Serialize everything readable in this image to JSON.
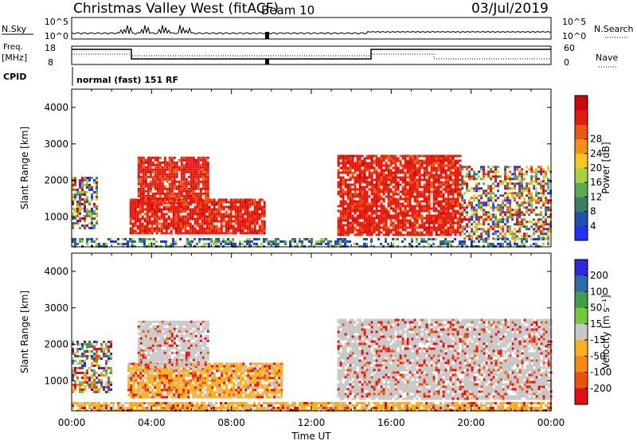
{
  "header": {
    "title": "Christmas Valley West (fitACF)",
    "beam": "Beam 10",
    "date": "03/Jul/2019"
  },
  "status_panels": {
    "nsky_label": "N.Sky",
    "nsearch_label": "N.Search",
    "freq_label_1": "Freq.",
    "freq_label_2": "[MHz]",
    "nave_label": "Nave",
    "cpid_label": "CPID",
    "cpid_value": "normal (fast) 151 RF",
    "noise_left_ticks": [
      "10^5",
      "10^0"
    ],
    "noise_right_ticks": [
      "10^5",
      "10^0"
    ],
    "freq_left_ticks": [
      "18",
      "8"
    ],
    "freq_right_ticks": [
      "60",
      "0"
    ]
  },
  "chart_data": [
    {
      "type": "heatmap",
      "name": "power",
      "ylabel": "Slant Range [km]",
      "ylim": [
        180,
        4500
      ],
      "yticks": [
        1000,
        2000,
        3000,
        4000
      ],
      "xlim_hours": [
        0,
        24
      ],
      "colorbar": {
        "label": "Power [dB]",
        "ticks": [
          "4",
          "8",
          "12",
          "16",
          "20",
          "24",
          "28"
        ],
        "colors": [
          "#2030ff",
          "#2050a8",
          "#3c7e64",
          "#5ea854",
          "#a8d040",
          "#f8c820",
          "#f49018",
          "#ec5812",
          "#e41a10",
          "#c80808"
        ]
      },
      "echo_regions": [
        {
          "t0": 0.0,
          "t1": 1.2,
          "r0": 700,
          "r1": 2100,
          "level": "mixed"
        },
        {
          "t0": 2.9,
          "t1": 9.6,
          "r0": 550,
          "r1": 1500,
          "level": "strong"
        },
        {
          "t0": 3.3,
          "t1": 6.8,
          "r0": 1400,
          "r1": 2650,
          "level": "strong"
        },
        {
          "t0": 13.3,
          "t1": 19.5,
          "r0": 500,
          "r1": 2700,
          "level": "strong"
        },
        {
          "t0": 19.5,
          "t1": 24.0,
          "r0": 400,
          "r1": 2400,
          "level": "mixed"
        },
        {
          "t0": 0.0,
          "t1": 24.0,
          "r0": 200,
          "r1": 420,
          "level": "weak"
        }
      ]
    },
    {
      "type": "heatmap",
      "name": "velocity",
      "ylabel": "Slant Range [km]",
      "ylim": [
        180,
        4500
      ],
      "yticks": [
        1000,
        2000,
        3000,
        4000
      ],
      "xlim_hours": [
        0,
        24
      ],
      "colorbar": {
        "label": "Velocity [m s⁻¹]",
        "ticks": [
          "200",
          "100",
          "50",
          "15",
          "-15",
          "-50",
          "-100",
          "-200"
        ],
        "colors": [
          "#2a2adc",
          "#2f6aa8",
          "#3f9e4a",
          "#78c83c",
          "#c8c8c8",
          "#f8b020",
          "#f48a18",
          "#ee5010",
          "#e01010"
        ]
      },
      "echo_regions": [
        {
          "t0": 0.0,
          "t1": 2.0,
          "r0": 700,
          "r1": 2100,
          "level": "mixed"
        },
        {
          "t0": 2.8,
          "t1": 10.5,
          "r0": 550,
          "r1": 1500,
          "level": "negative"
        },
        {
          "t0": 3.3,
          "t1": 6.8,
          "r0": 1400,
          "r1": 2650,
          "level": "near-zero"
        },
        {
          "t0": 13.3,
          "t1": 24.0,
          "r0": 500,
          "r1": 2700,
          "level": "near-zero"
        },
        {
          "t0": 0.0,
          "t1": 24.0,
          "r0": 200,
          "r1": 420,
          "level": "negative"
        }
      ]
    }
  ],
  "x_axis": {
    "label": "Time UT",
    "ticks": [
      "00:00",
      "04:00",
      "08:00",
      "12:00",
      "16:00",
      "20:00",
      "00:00"
    ]
  }
}
